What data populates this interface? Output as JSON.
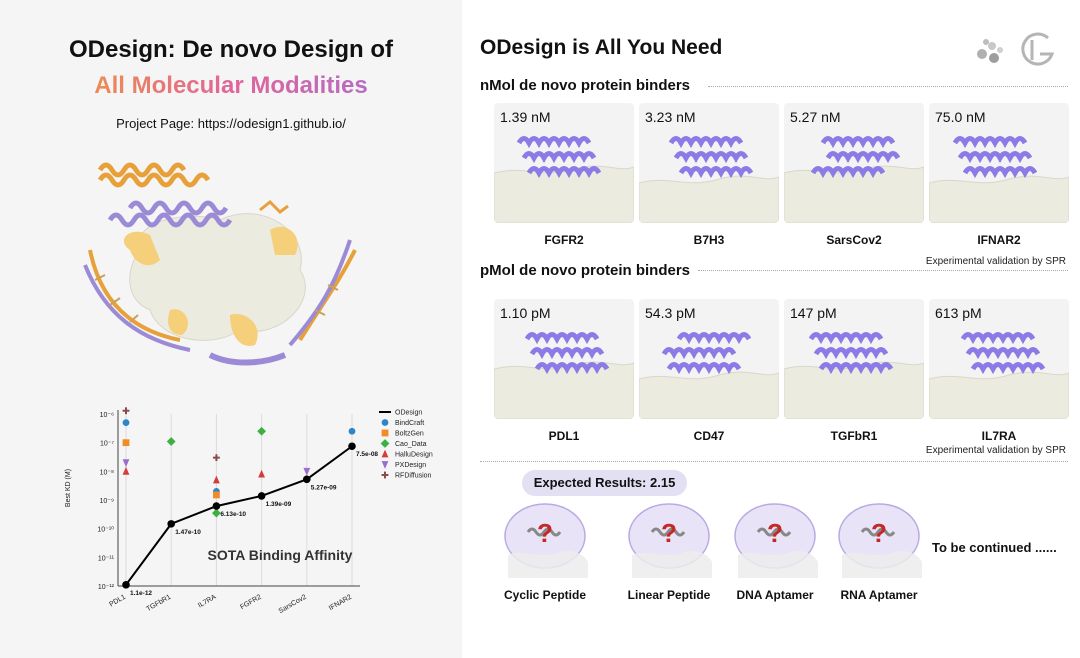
{
  "left": {
    "title_line1": "ODesign: De novo Design of",
    "title_line2": "All Molecular Modalities",
    "project_page": "Project Page: https://odesign1.github.io/"
  },
  "chart_data": {
    "type": "scatter",
    "title": "SOTA Binding Affinity",
    "ylabel": "Best KD (M)",
    "yscale": "log",
    "ylim": [
      1e-12,
      1e-06
    ],
    "yticks": [
      "10⁻¹²",
      "10⁻¹¹",
      "10⁻¹⁰",
      "10⁻⁹",
      "10⁻⁸",
      "10⁻⁷",
      "10⁻⁶"
    ],
    "categories": [
      "PDL1",
      "TGFbR1",
      "IL7RA",
      "FGFR2",
      "SarsCov2",
      "IFNAR2"
    ],
    "series": [
      {
        "name": "ODesign",
        "marker": "line",
        "color": "#000000",
        "values": [
          1.1e-12,
          1.47e-10,
          6.13e-10,
          1.39e-09,
          5.27e-09,
          7.5e-08
        ],
        "labels": [
          "1.1e-12",
          "1.47e-10",
          "6.13e-10",
          "1.39e-09",
          "5.27e-09",
          "7.5e-08"
        ]
      },
      {
        "name": "BindCraft",
        "marker": "circle",
        "color": "#2e86c8",
        "values": [
          5e-07,
          null,
          2e-09,
          null,
          null,
          2.5e-07
        ]
      },
      {
        "name": "BoltzGen",
        "marker": "square",
        "color": "#f28c28",
        "values": [
          1e-07,
          null,
          1.5e-09,
          null,
          null,
          null
        ]
      },
      {
        "name": "Cao_Data",
        "marker": "diamond",
        "color": "#3cb043",
        "values": [
          null,
          1.1e-07,
          3.5e-10,
          2.5e-07,
          null,
          null
        ]
      },
      {
        "name": "HalluDesign",
        "marker": "triangle-up",
        "color": "#d63a3a",
        "values": [
          1e-08,
          null,
          5e-09,
          8e-09,
          null,
          null
        ]
      },
      {
        "name": "PXDesign",
        "marker": "triangle-down",
        "color": "#9a6ecf",
        "values": [
          2e-08,
          null,
          null,
          null,
          1e-08,
          null
        ]
      },
      {
        "name": "RFDiffusion",
        "marker": "plus",
        "color": "#8c4a4a",
        "values": [
          1.3e-06,
          null,
          3e-08,
          null,
          null,
          null
        ]
      }
    ]
  },
  "right": {
    "title": "ODesign is All You Need",
    "nmol_header": "nMol de novo protein binders",
    "pmol_header": "pMol de novo protein binders",
    "nmol_cards": [
      {
        "value": "1.39 nM",
        "target": "FGFR2"
      },
      {
        "value": "3.23 nM",
        "target": "B7H3"
      },
      {
        "value": "5.27 nM",
        "target": "SarsCov2"
      },
      {
        "value": "75.0 nM",
        "target": "IFNAR2"
      }
    ],
    "pmol_cards": [
      {
        "value": "1.10 pM",
        "target": "PDL1"
      },
      {
        "value": "54.3 pM",
        "target": "CD47"
      },
      {
        "value": "147 pM",
        "target": "TGFbR1"
      },
      {
        "value": "613 pM",
        "target": "IL7RA"
      }
    ],
    "spr_note": "Experimental validation by SPR",
    "expected": "Expected Results: 2.15",
    "modalities": [
      "Cyclic Peptide",
      "Linear Peptide",
      "DNA Aptamer",
      "RNA Aptamer"
    ],
    "continued": "To be continued ......",
    "question_mark": "?"
  },
  "colors": {
    "helix": "#8c7ae6",
    "surface": "#ecebdf",
    "accent": "#d8d0f0",
    "question": "#c62828"
  }
}
